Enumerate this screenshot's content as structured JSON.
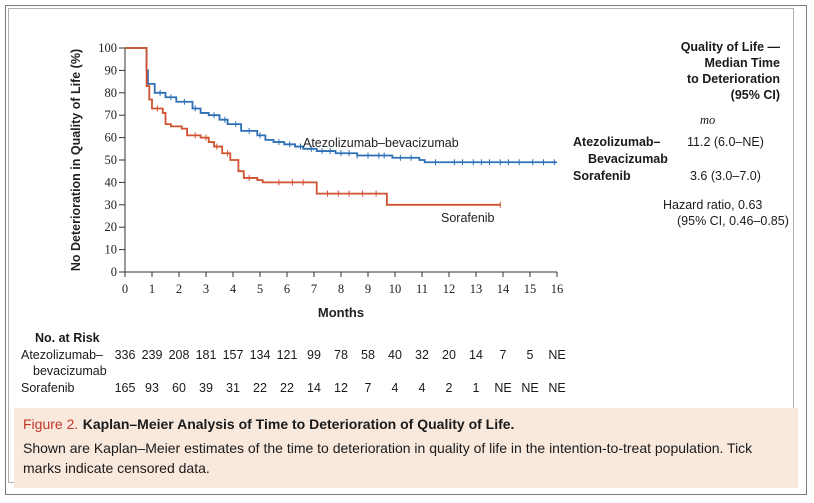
{
  "chart_data": {
    "type": "line",
    "title": "",
    "xlabel": "Months",
    "ylabel": "No Deterioration in Quality of Life (%)",
    "xlim": [
      0,
      16
    ],
    "ylim": [
      0,
      100
    ],
    "x_ticks": [
      "0",
      "1",
      "2",
      "3",
      "4",
      "5",
      "6",
      "7",
      "8",
      "9",
      "10",
      "11",
      "12",
      "13",
      "14",
      "15",
      "16"
    ],
    "y_ticks": [
      "0",
      "10",
      "20",
      "30",
      "40",
      "50",
      "60",
      "70",
      "80",
      "90",
      "100"
    ],
    "series": [
      {
        "name": "Atezolizumab–bevacizumab",
        "color": "#2e6fb5",
        "steps": [
          [
            0,
            100
          ],
          [
            0.75,
            100
          ],
          [
            0.8,
            90
          ],
          [
            0.85,
            84
          ],
          [
            1.1,
            80
          ],
          [
            1.5,
            78
          ],
          [
            1.9,
            76
          ],
          [
            2.5,
            73
          ],
          [
            2.8,
            71
          ],
          [
            3.1,
            70
          ],
          [
            3.5,
            68
          ],
          [
            3.8,
            66
          ],
          [
            4.3,
            63
          ],
          [
            4.9,
            61
          ],
          [
            5.2,
            59
          ],
          [
            5.5,
            58
          ],
          [
            5.9,
            57
          ],
          [
            6.3,
            56
          ],
          [
            6.6,
            55
          ],
          [
            7.1,
            54
          ],
          [
            7.8,
            53
          ],
          [
            8.6,
            52
          ],
          [
            9.3,
            52
          ],
          [
            9.9,
            51
          ],
          [
            10.9,
            50
          ],
          [
            11.1,
            49
          ],
          [
            12.0,
            49
          ],
          [
            16.0,
            49
          ]
        ],
        "censor_x": [
          1.3,
          1.7,
          2.2,
          2.6,
          3.3,
          3.7,
          4.1,
          4.6,
          5.0,
          5.7,
          6.1,
          6.5,
          6.9,
          7.3,
          7.6,
          8.0,
          8.3,
          8.6,
          9.0,
          9.4,
          9.6,
          10.2,
          10.6,
          11.5,
          12.2,
          12.5,
          12.9,
          13.2,
          13.5,
          13.9,
          14.2,
          14.6,
          15.1,
          15.5,
          15.9
        ]
      },
      {
        "name": "Sorafenib",
        "color": "#d05230",
        "steps": [
          [
            0,
            100
          ],
          [
            0.75,
            100
          ],
          [
            0.8,
            83
          ],
          [
            0.9,
            77
          ],
          [
            1.0,
            73
          ],
          [
            1.4,
            71
          ],
          [
            1.5,
            66
          ],
          [
            1.7,
            65
          ],
          [
            2.1,
            64
          ],
          [
            2.3,
            61
          ],
          [
            2.8,
            60
          ],
          [
            3.1,
            58
          ],
          [
            3.3,
            56
          ],
          [
            3.6,
            53
          ],
          [
            3.9,
            50
          ],
          [
            4.2,
            45
          ],
          [
            4.4,
            42
          ],
          [
            4.9,
            41
          ],
          [
            5.1,
            40
          ],
          [
            6.9,
            40
          ],
          [
            7.1,
            35
          ],
          [
            9.6,
            35
          ],
          [
            9.7,
            30
          ],
          [
            13.9,
            30
          ]
        ],
        "censor_x": [
          1.2,
          2.6,
          3.0,
          3.4,
          3.8,
          4.6,
          5.7,
          6.2,
          6.6,
          7.5,
          7.9,
          8.3,
          8.8,
          9.3,
          13.9
        ]
      }
    ],
    "annotations": [
      "Atezolizumab–bevacizumab",
      "Sorafenib"
    ]
  },
  "legend": {
    "title_lines": [
      "Quality of Life —",
      "Median Time",
      "to Deterioration",
      "(95% CI)"
    ],
    "unit": "mo",
    "rows": [
      {
        "label": "Atezolizumab–",
        "label2": "Bevacizumab",
        "value": "11.2 (6.0–NE)"
      },
      {
        "label": "Sorafenib",
        "value": "3.6 (3.0–7.0)"
      }
    ],
    "hr_line1": "Hazard ratio, 0.63",
    "hr_line2": "(95% CI, 0.46–0.85)"
  },
  "risk_table": {
    "title": "No. at Risk",
    "rows": [
      {
        "label": "Atezolizumab–",
        "label2": "bevacizumab",
        "values": [
          "336",
          "239",
          "208",
          "181",
          "157",
          "134",
          "121",
          "99",
          "78",
          "58",
          "40",
          "32",
          "20",
          "14",
          "7",
          "5",
          "NE"
        ]
      },
      {
        "label": "Sorafenib",
        "values": [
          "165",
          "93",
          "60",
          "39",
          "31",
          "22",
          "22",
          "14",
          "12",
          "7",
          "4",
          "4",
          "2",
          "1",
          "NE",
          "NE",
          "NE"
        ]
      }
    ]
  },
  "caption": {
    "figure": "Figure 2.",
    "title": "Kaplan–Meier Analysis of Time to Deterioration of Quality of Life.",
    "body": "Shown are Kaplan–Meier estimates of the time to deterioration in quality of life in the intention-to-treat population. Tick marks indicate censored data."
  }
}
